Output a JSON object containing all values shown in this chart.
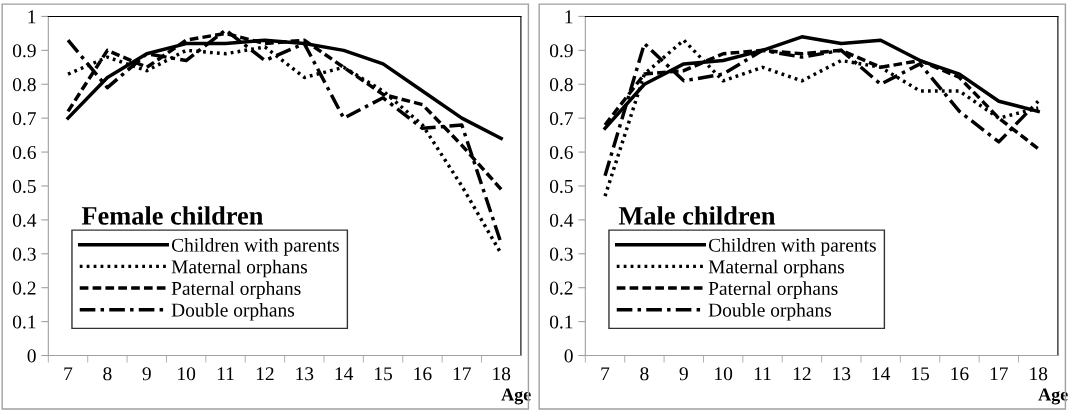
{
  "chart_data": [
    {
      "type": "line",
      "title": "Female children",
      "xlabel": "Age",
      "categories": [
        "7",
        "8",
        "9",
        "10",
        "11",
        "12",
        "13",
        "14",
        "15",
        "16",
        "17",
        "18"
      ],
      "ylim": [
        0,
        1
      ],
      "yticks": [
        0,
        0.1,
        0.2,
        0.3,
        0.4,
        0.5,
        0.6,
        0.7,
        0.8,
        0.9,
        1
      ],
      "legend": "bottom left",
      "grid": false,
      "marker": "none",
      "series": [
        {
          "name": "Children with parents",
          "color": "#000000",
          "line_style": "solid",
          "values": [
            0.7,
            0.82,
            0.89,
            0.92,
            0.92,
            0.93,
            0.92,
            0.9,
            0.86,
            0.78,
            0.7,
            0.64
          ]
        },
        {
          "name": "Maternal orphans",
          "color": "#000000",
          "line_style": "dotted",
          "values": [
            0.83,
            0.88,
            0.84,
            0.9,
            0.89,
            0.91,
            0.82,
            0.85,
            0.78,
            0.68,
            0.5,
            0.3
          ]
        },
        {
          "name": "Paternal orphans",
          "color": "#000000",
          "line_style": "dashed",
          "values": [
            0.72,
            0.9,
            0.85,
            0.93,
            0.95,
            0.92,
            0.93,
            0.85,
            0.77,
            0.74,
            0.62,
            0.49
          ]
        },
        {
          "name": "Double orphans",
          "color": "#000000",
          "line_style": "dashdot",
          "values": [
            0.93,
            0.79,
            0.89,
            0.87,
            0.96,
            0.87,
            0.92,
            0.7,
            0.76,
            0.67,
            0.68,
            0.33
          ]
        }
      ]
    },
    {
      "type": "line",
      "title": "Male children",
      "xlabel": "Age",
      "categories": [
        "7",
        "8",
        "9",
        "10",
        "11",
        "12",
        "13",
        "14",
        "15",
        "16",
        "17",
        "18"
      ],
      "ylim": [
        0,
        1
      ],
      "yticks": [
        0,
        0.1,
        0.2,
        0.3,
        0.4,
        0.5,
        0.6,
        0.7,
        0.8,
        0.9,
        1
      ],
      "legend": "bottom left",
      "grid": false,
      "marker": "none",
      "series": [
        {
          "name": "Children with parents",
          "color": "#000000",
          "line_style": "solid",
          "values": [
            0.67,
            0.8,
            0.86,
            0.87,
            0.9,
            0.94,
            0.92,
            0.93,
            0.87,
            0.83,
            0.75,
            0.72
          ]
        },
        {
          "name": "Maternal orphans",
          "color": "#000000",
          "line_style": "dotted",
          "values": [
            0.47,
            0.83,
            0.93,
            0.81,
            0.85,
            0.81,
            0.87,
            0.85,
            0.78,
            0.78,
            0.7,
            0.73
          ]
        },
        {
          "name": "Paternal orphans",
          "color": "#000000",
          "line_style": "dashed",
          "values": [
            0.68,
            0.83,
            0.84,
            0.89,
            0.9,
            0.89,
            0.9,
            0.85,
            0.87,
            0.82,
            0.7,
            0.61
          ]
        },
        {
          "name": "Double orphans",
          "color": "#000000",
          "line_style": "dashdot",
          "values": [
            0.53,
            0.92,
            0.81,
            0.83,
            0.9,
            0.88,
            0.9,
            0.8,
            0.86,
            0.72,
            0.63,
            0.75
          ]
        }
      ]
    }
  ]
}
